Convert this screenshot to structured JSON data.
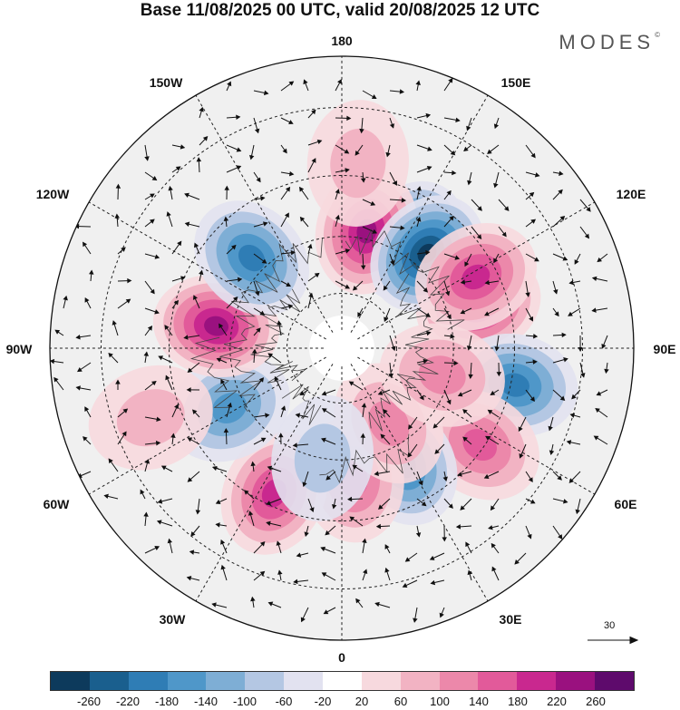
{
  "title": "Base 11/08/2025 00 UTC, valid 20/08/2025 12 UTC",
  "brand": "MODES",
  "brand_mark": "©",
  "longitude_labels": {
    "top": "180",
    "bottom": "0",
    "left": "90W",
    "right": "90E",
    "tl1": "150W",
    "tr1": "150E",
    "tl2": "120W",
    "tr2": "120E",
    "bl1": "60W",
    "br1": "60E",
    "bl2": "30W",
    "br2": "30E"
  },
  "vector_scale": "30",
  "colorbar": {
    "colors": [
      "#0d3a5c",
      "#1a5f8e",
      "#2f7db5",
      "#4f97c9",
      "#7eaed5",
      "#b4c7e3",
      "#e2e2f0",
      "#ffffff",
      "#f7d9de",
      "#f2b3c3",
      "#ec88aa",
      "#e25a9a",
      "#c9288f",
      "#9a117f",
      "#5e0a6c"
    ],
    "ticks": [
      "-260",
      "-220",
      "-180",
      "-140",
      "-100",
      "-60",
      "-20",
      "20",
      "60",
      "100",
      "140",
      "180",
      "220",
      "260"
    ]
  },
  "anomalies": [
    {
      "lon": 147,
      "lat": 56,
      "value": -240
    },
    {
      "lon": 168,
      "lat": 58,
      "value": 210
    },
    {
      "lon": 108,
      "lat": 52,
      "value": 200
    },
    {
      "lon": 138,
      "lat": 56,
      "value": -230
    },
    {
      "lon": 118,
      "lat": 50,
      "value": 150
    },
    {
      "lon": 78,
      "lat": 44,
      "value": -150
    },
    {
      "lon": 55,
      "lat": 46,
      "value": 120
    },
    {
      "lon": 28,
      "lat": 55,
      "value": -160
    },
    {
      "lon": 5,
      "lat": 55,
      "value": 130
    },
    {
      "lon": 32,
      "lat": 66,
      "value": 80
    },
    {
      "lon": -25,
      "lat": 48,
      "value": 150
    },
    {
      "lon": -62,
      "lat": 56,
      "value": -120
    },
    {
      "lon": -100,
      "lat": 56,
      "value": 220
    },
    {
      "lon": -135,
      "lat": 56,
      "value": -170
    },
    {
      "lon": 75,
      "lat": 62,
      "value": 90
    },
    {
      "lon": -10,
      "lat": 60,
      "value": -50
    },
    {
      "lon": 175,
      "lat": 42,
      "value": 60
    },
    {
      "lon": -70,
      "lat": 38,
      "value": 40
    }
  ]
}
